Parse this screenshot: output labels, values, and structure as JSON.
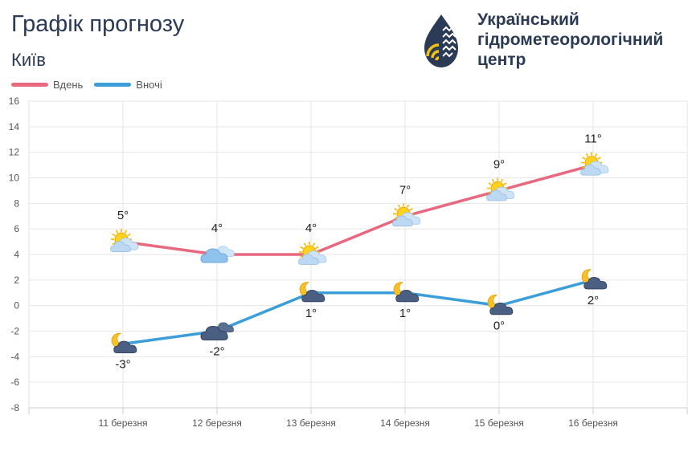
{
  "header": {
    "title": "Графік прогнозу",
    "city": "Київ",
    "org_lines": [
      "Український",
      "гідрометеорологічний",
      "центр"
    ]
  },
  "colors": {
    "day": "#e8697f",
    "night": "#3c9ed9",
    "text": "#2b3a55"
  },
  "chart_data": {
    "type": "line",
    "categories": [
      "11 березня",
      "12 березня",
      "13 березня",
      "14 березня",
      "15 березня",
      "16 березня"
    ],
    "series": [
      {
        "name": "Вдень",
        "values": [
          5,
          4,
          4,
          7,
          9,
          11
        ],
        "labels": [
          "5°",
          "4°",
          "4°",
          "7°",
          "9°",
          "11°"
        ],
        "icons": [
          "sun-cloud-icon",
          "cloud-icon",
          "sun-cloud-icon",
          "sun-cloud-icon",
          "sun-cloud-icon",
          "sun-cloud-icon"
        ]
      },
      {
        "name": "Вночі",
        "values": [
          -3,
          -2,
          1,
          1,
          0,
          2
        ],
        "labels": [
          "-3°",
          "-2°",
          "1°",
          "1°",
          "0°",
          "2°"
        ],
        "icons": [
          "moon-cloud-icon",
          "dark-cloud-icon",
          "moon-cloud-icon",
          "moon-cloud-icon",
          "moon-cloud-icon",
          "moon-cloud-icon"
        ]
      }
    ],
    "ylim": [
      -8,
      16
    ],
    "yticks": [
      16,
      14,
      12,
      10,
      8,
      6,
      4,
      2,
      0,
      -2,
      -4,
      -6,
      -8
    ],
    "grid": true,
    "legend": "top-left"
  }
}
